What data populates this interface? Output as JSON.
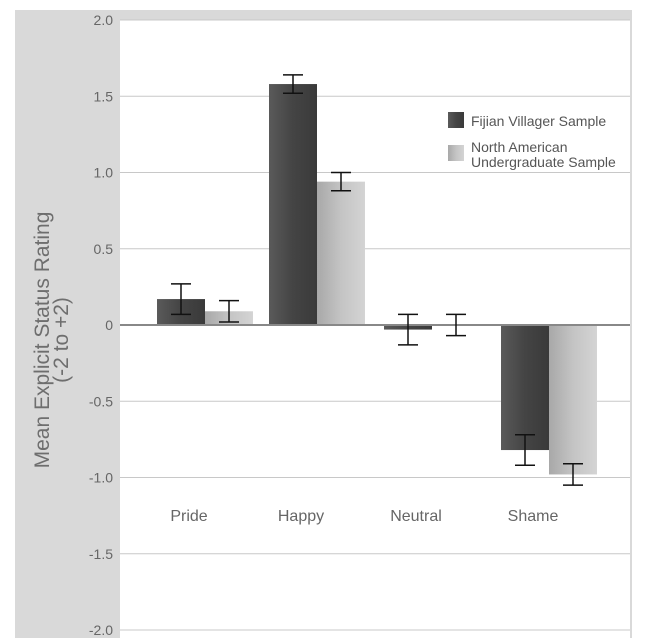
{
  "chart_data": {
    "type": "bar",
    "categories": [
      "Pride",
      "Happy",
      "Neutral",
      "Shame"
    ],
    "series": [
      {
        "name": "Fijian Villager Sample",
        "values": [
          0.17,
          1.58,
          -0.03,
          -0.82
        ],
        "error": [
          0.1,
          0.06,
          0.1,
          0.1
        ]
      },
      {
        "name": "North American Undergraduate Sample",
        "name_lines": [
          "North American",
          "Undergraduate Sample"
        ],
        "values": [
          0.09,
          0.94,
          0.0,
          -0.98
        ],
        "error": [
          0.07,
          0.06,
          0.07,
          0.07
        ]
      }
    ],
    "ylabel": "Mean Explicit Status Rating",
    "ylabel_sub": "(-2 to +2)",
    "ylim": [
      -2.0,
      2.0
    ],
    "yticks": [
      "2.0",
      "1.5",
      "1.0",
      "0.5",
      "0",
      "-0.5",
      "-1.0",
      "-1.5",
      "-2.0"
    ],
    "ytick_values": [
      2.0,
      1.5,
      1.0,
      0.5,
      0,
      -0.5,
      -1.0,
      -1.5,
      -2.0
    ],
    "grid": true,
    "legend_position": "top-right",
    "colors": {
      "series_dark": "#4a4a4a",
      "series_light": "#c4c4c4",
      "frame": "#d9d9d9",
      "grid": "#c8c8c8",
      "text": "#666666"
    }
  }
}
